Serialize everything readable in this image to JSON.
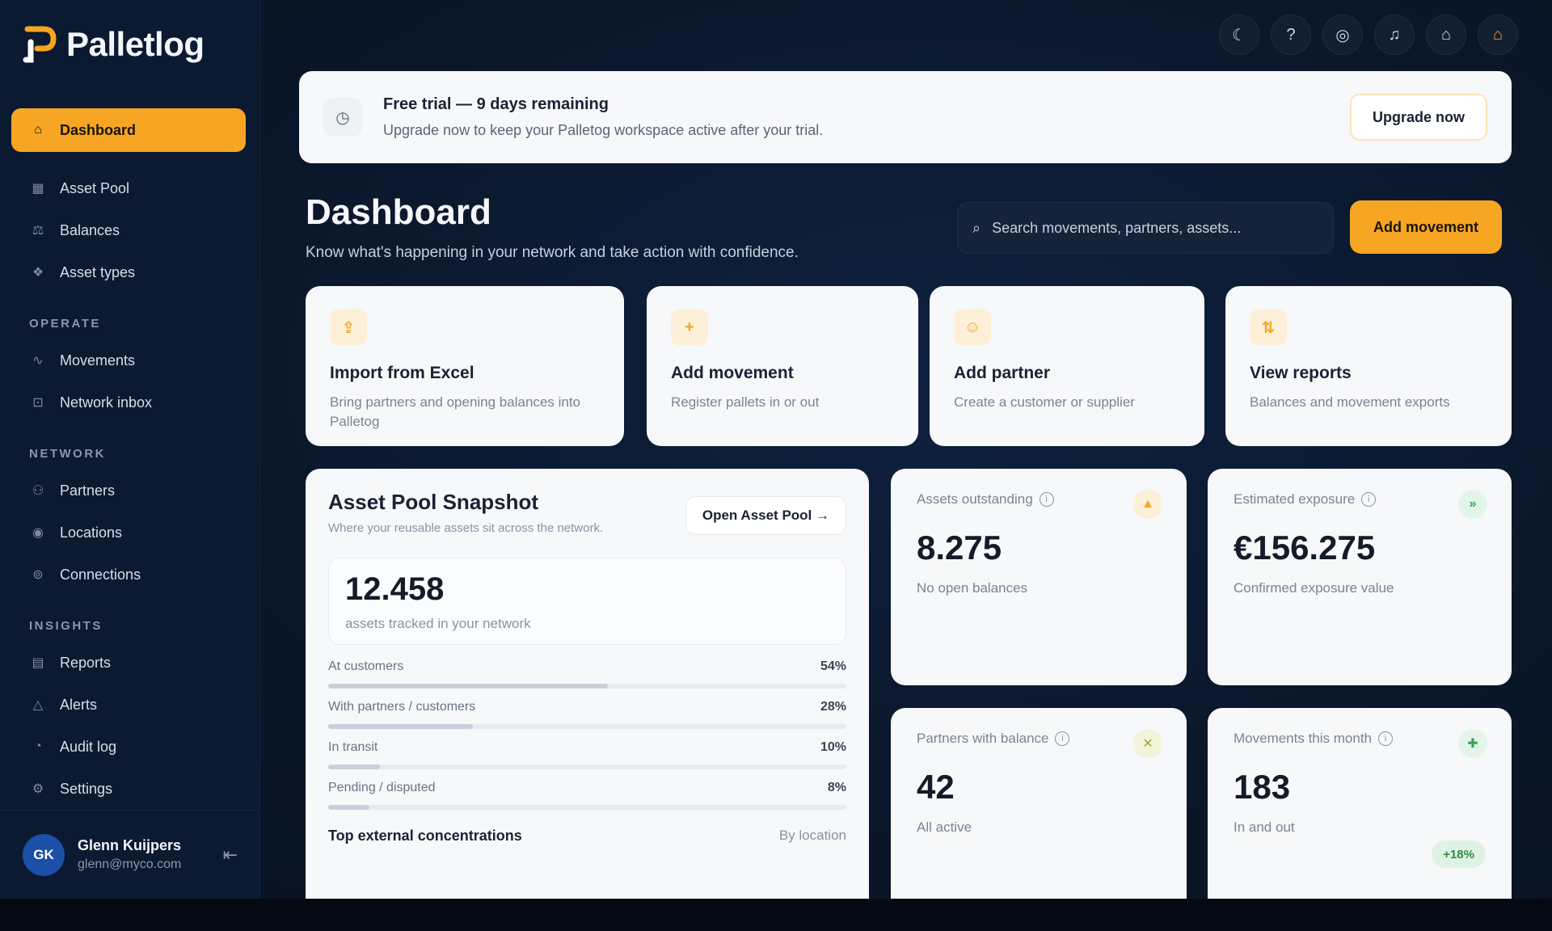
{
  "app": {
    "name": "Palletlog"
  },
  "sidebar": {
    "main": [
      {
        "label": "Dashboard",
        "icon": "home-icon",
        "active": true
      },
      {
        "label": "Asset Pool",
        "icon": "grid-icon"
      },
      {
        "label": "Balances",
        "icon": "scale-icon"
      },
      {
        "label": "Asset types",
        "icon": "layers-icon"
      }
    ],
    "sections": [
      {
        "title": "OPERATE",
        "items": [
          {
            "label": "Movements",
            "icon": "activity-icon"
          },
          {
            "label": "Network inbox",
            "icon": "inbox-icon"
          }
        ]
      },
      {
        "title": "NETWORK",
        "items": [
          {
            "label": "Partners",
            "icon": "users-icon"
          },
          {
            "label": "Locations",
            "icon": "pin-icon"
          },
          {
            "label": "Connections",
            "icon": "link-icon"
          }
        ]
      },
      {
        "title": "INSIGHTS",
        "items": [
          {
            "label": "Reports",
            "icon": "report-icon"
          },
          {
            "label": "Alerts",
            "icon": "alert-icon"
          },
          {
            "label": "Audit log",
            "icon": "log-icon"
          },
          {
            "label": "Settings",
            "icon": "gear-icon"
          }
        ]
      }
    ],
    "user": {
      "initials": "GK",
      "name": "Glenn Kuijpers",
      "email": "glenn@myco.com"
    }
  },
  "topbar": {
    "icons": [
      "moon-icon",
      "help-icon",
      "support-icon",
      "bell-icon",
      "notifications-icon",
      "account-icon"
    ]
  },
  "banner": {
    "title": "Free trial — 9 days remaining",
    "subtitle": "Upgrade now to keep your Palletog workspace active after your trial.",
    "button": "Upgrade now"
  },
  "header": {
    "title": "Dashboard",
    "subtitle": "Know what's happening in your network and take action with confidence.",
    "search_placeholder": "Search movements, partners, assets...",
    "add_button": "Add movement"
  },
  "quick_actions": [
    {
      "title": "Import from Excel",
      "subtitle": "Bring partners and opening balances into Palletog",
      "icon_glyph": "⇪"
    },
    {
      "title": "Add movement",
      "subtitle": "Register pallets in or out",
      "icon_glyph": "+"
    },
    {
      "title": "Add partner",
      "subtitle": "Create a customer or supplier",
      "icon_glyph": "☺"
    },
    {
      "title": "View reports",
      "subtitle": "Balances and movement exports",
      "icon_glyph": "⇅"
    }
  ],
  "asset_pool": {
    "title": "Asset Pool Snapshot",
    "subtitle": "Where your reusable assets sit across the network.",
    "open_button": "Open Asset Pool →",
    "total": "12.458",
    "total_label": "assets tracked in your network",
    "distribution": [
      {
        "label": "At customers",
        "pct": "54%",
        "value": 54
      },
      {
        "label": "With partners / customers",
        "pct": "28%",
        "value": 28
      },
      {
        "label": "In transit",
        "pct": "10%",
        "value": 10
      },
      {
        "label": "Pending / disputed",
        "pct": "8%",
        "value": 8
      }
    ],
    "concentrations_title": "Top external concentrations",
    "concentrations_by": "By location"
  },
  "stats": [
    {
      "label": "Assets outstanding",
      "value": "8.275",
      "sub": "No open balances",
      "badge": "▲",
      "badge_color": "#f6a623",
      "badge_bg": "#fdf0d9"
    },
    {
      "label": "Estimated exposure",
      "value": "€156.275",
      "sub": "Confirmed exposure value",
      "badge": "»",
      "badge_color": "#3aa05a",
      "badge_bg": "#e3f4e8"
    },
    {
      "label": "Partners with balance",
      "value": "42",
      "sub": "All active",
      "badge": "✕",
      "badge_color": "#9aaa2a",
      "badge_bg": "#f2f4dc"
    },
    {
      "label": "Movements this month",
      "value": "183",
      "sub": "In and out",
      "badge": "✚",
      "badge_color": "#3aa05a",
      "badge_bg": "#e3f4e8",
      "trend": "+18%"
    }
  ],
  "colors": {
    "accent": "#f6a623",
    "background": "#0a1628",
    "card": "#f7f8fa"
  }
}
